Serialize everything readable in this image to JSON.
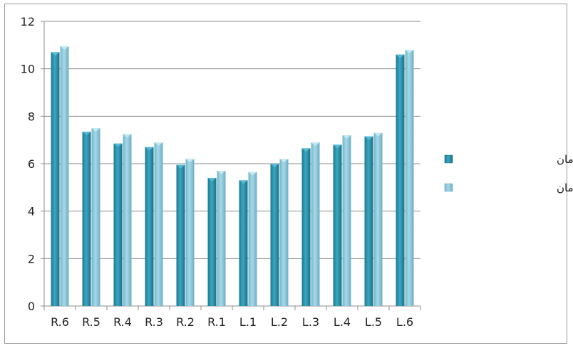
{
  "chart_data": {
    "type": "bar",
    "categories": [
      "R.6",
      "R.5",
      "R.4",
      "R.3",
      "R.2",
      "R.1",
      "L.1",
      "L.2",
      "L.3",
      "L.4",
      "L.5",
      "L.6"
    ],
    "series": [
      {
        "name": "دختر.بعد از درمان",
        "color": "#2f93ad",
        "values": [
          10.7,
          7.35,
          6.85,
          6.7,
          5.95,
          5.4,
          5.3,
          6.0,
          6.65,
          6.8,
          7.15,
          10.6
        ]
      },
      {
        "name": "دختر.قبل از درمان",
        "color": "#8fcadc",
        "values": [
          10.95,
          7.5,
          7.25,
          6.9,
          6.2,
          5.7,
          5.65,
          6.2,
          6.9,
          7.2,
          7.3,
          10.8
        ]
      }
    ],
    "ylim": [
      0,
      12
    ],
    "yticks": [
      0,
      2,
      4,
      6,
      8,
      10,
      12
    ],
    "grid": true,
    "legend_position": "right",
    "title": "",
    "xlabel": "",
    "ylabel": ""
  }
}
